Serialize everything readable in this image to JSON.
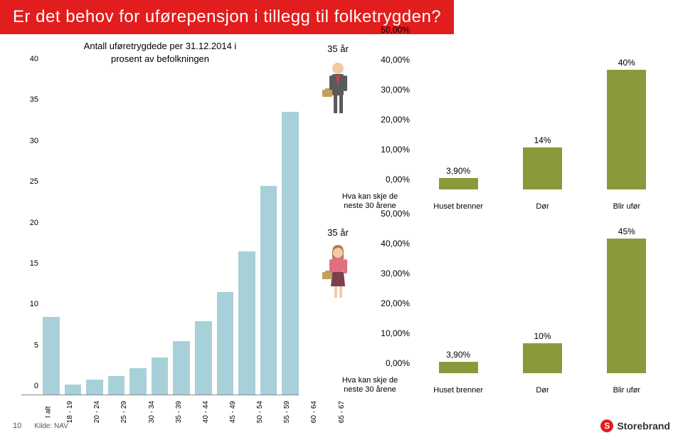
{
  "header": {
    "title": "Er det behov for uførepensjon i tillegg til folketrygden?"
  },
  "left_chart": {
    "type": "bar",
    "title_line1": "Antall uføretrygdede per 31.12.2014 i",
    "title_line2": "prosent av befolkningen",
    "ymax": 40,
    "ytick_step": 5,
    "y_ticks": [
      0,
      5,
      10,
      15,
      20,
      25,
      30,
      35,
      40
    ],
    "bar_color": "#a8d0d8",
    "categories": [
      "I alt",
      "18 - 19",
      "20 - 24",
      "25 - 29",
      "30 - 34",
      "35 - 39",
      "40 - 44",
      "45 - 49",
      "50 - 54",
      "55 - 59",
      "60 - 64",
      "65 - 67"
    ],
    "values": [
      9.5,
      1.2,
      1.8,
      2.3,
      3.2,
      4.5,
      6.5,
      9.0,
      12.5,
      17.5,
      25.5,
      34.5
    ]
  },
  "mini_chart_1": {
    "type": "bar",
    "age_label": "35 år",
    "bar_color": "#8a9a3a",
    "ymax": 50,
    "y_ticks": [
      "0,00%",
      "10,00%",
      "20,00%",
      "30,00%",
      "40,00%",
      "50,00%"
    ],
    "first_x_label_line1": "Hva kan skje de",
    "first_x_label_line2": "neste 30 årene",
    "categories": [
      "Huset brenner",
      "Dør",
      "Blir ufør"
    ],
    "labels": [
      "3,90%",
      "14%",
      "40%"
    ],
    "values": [
      3.9,
      14,
      40
    ],
    "person": "male"
  },
  "mini_chart_2": {
    "type": "bar",
    "age_label": "35 år",
    "bar_color": "#8a9a3a",
    "ymax": 50,
    "y_ticks": [
      "0,00%",
      "10,00%",
      "20,00%",
      "30,00%",
      "40,00%",
      "50,00%"
    ],
    "first_x_label_line1": "Hva kan skje de",
    "first_x_label_line2": "neste 30 årene",
    "categories": [
      "Huset brenner",
      "Dør",
      "Blir ufør"
    ],
    "labels": [
      "3,90%",
      "10%",
      "45%"
    ],
    "values": [
      3.9,
      10,
      45
    ],
    "person": "female"
  },
  "footer": {
    "page": "10",
    "source": "Kilde: NAV",
    "logo_text": "Storebrand"
  },
  "colors": {
    "header_bg": "#e21d1d",
    "header_text": "#ffffff",
    "left_bar": "#a8d0d8",
    "mini_bar": "#8a9a3a",
    "briefcase": "#c4a05a",
    "skin": "#f5c9a3",
    "male_suit": "#5a5a5a",
    "male_tie": "#d04040",
    "female_top": "#e07080",
    "female_skirt": "#7a4050",
    "female_hair": "#a98050"
  }
}
